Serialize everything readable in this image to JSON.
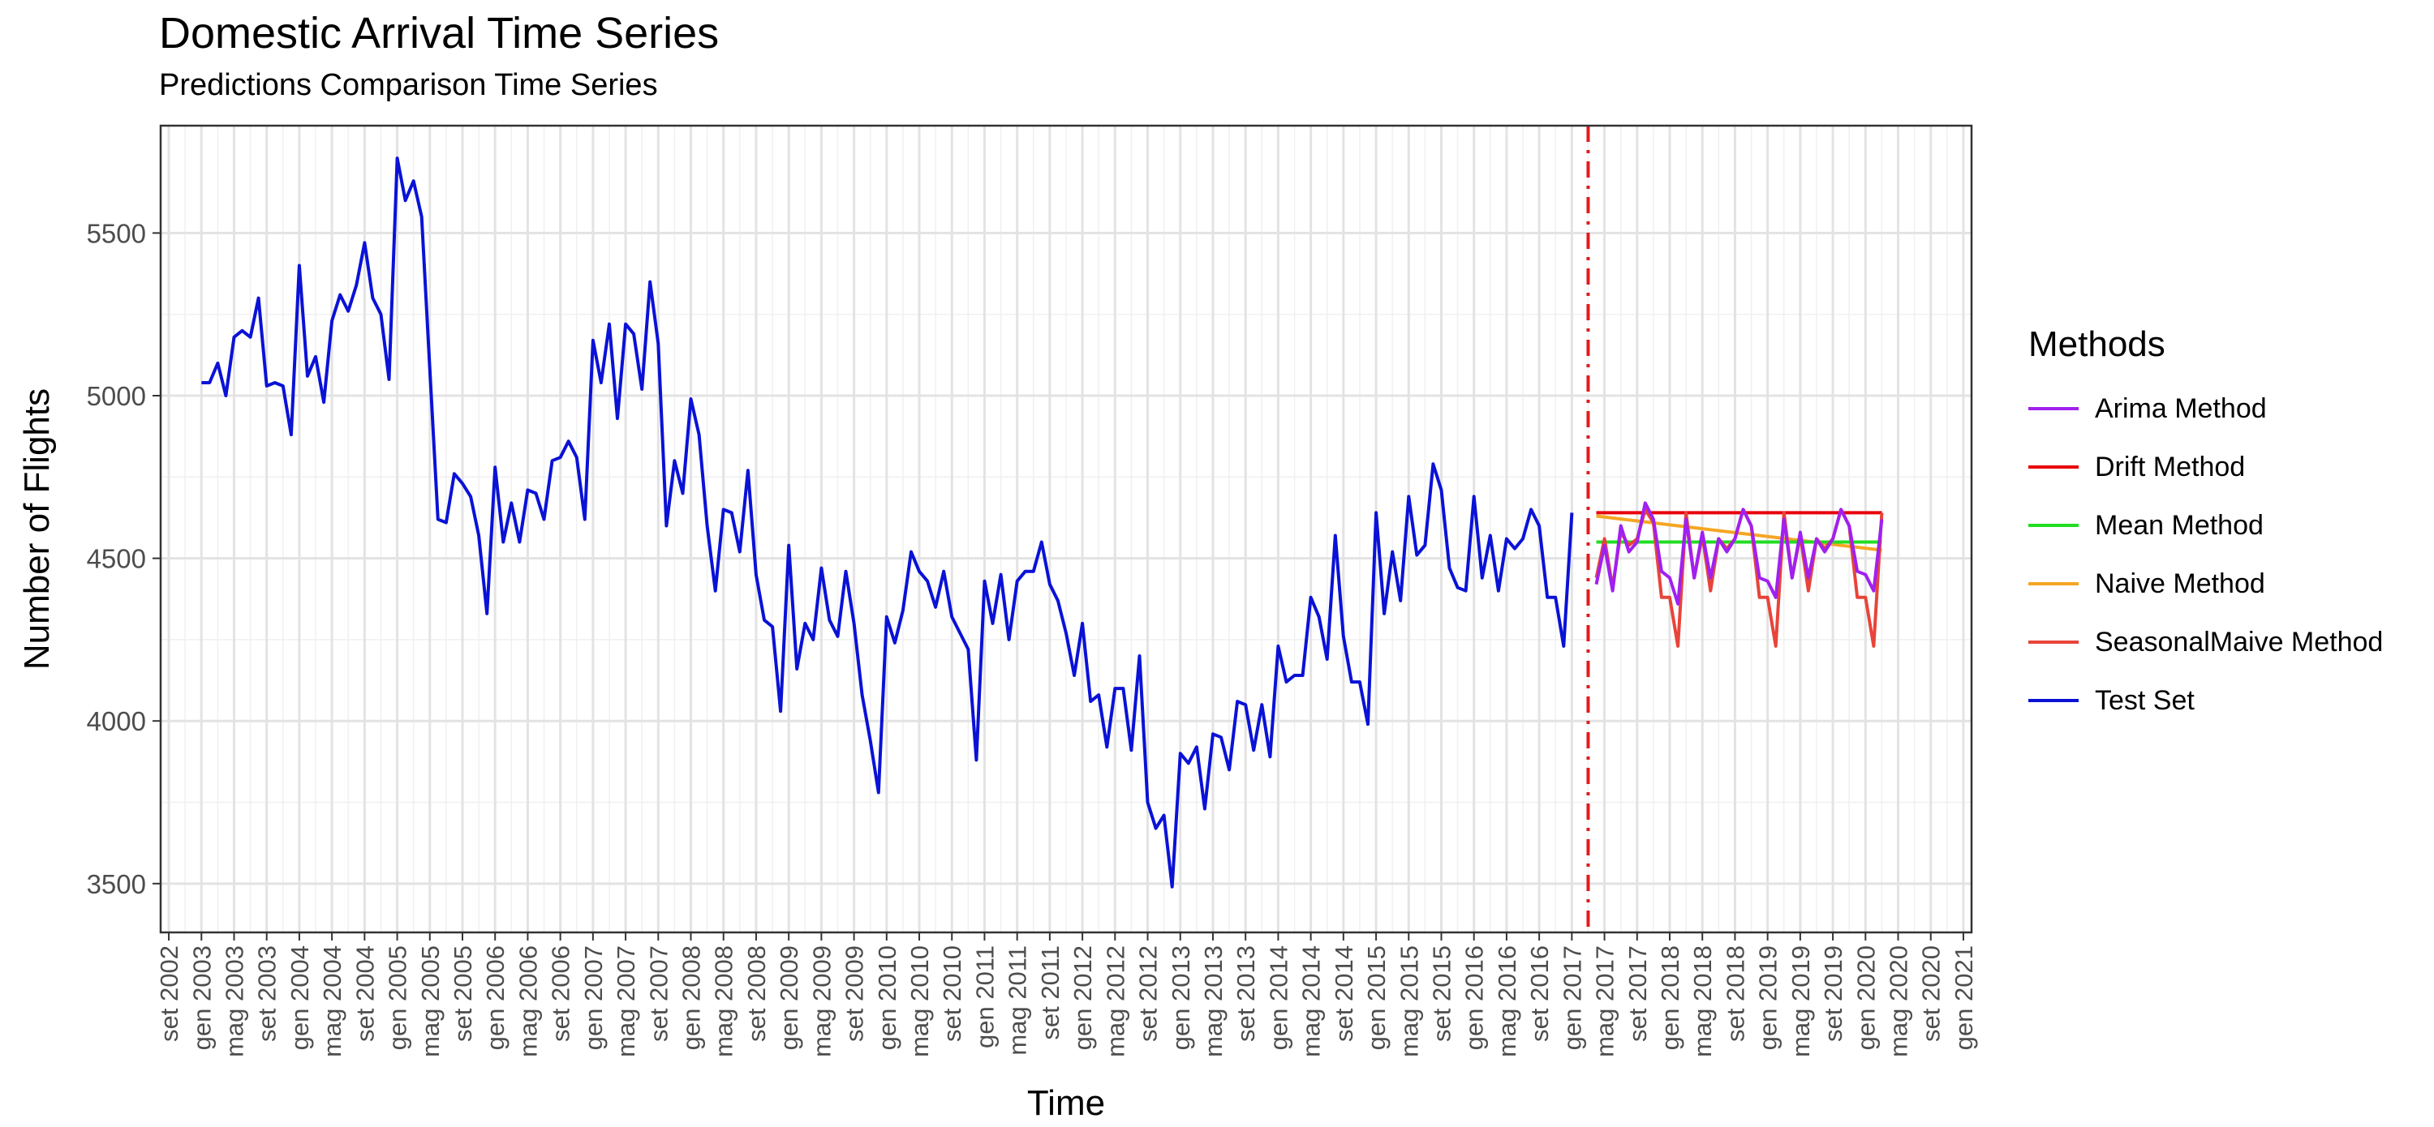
{
  "chart_data": {
    "type": "line",
    "title": "Domestic Arrival Time Series",
    "subtitle": "Predictions Comparison Time Series",
    "xlabel": "Time",
    "ylabel": "Number of Flights",
    "x_range": [
      "2002-08",
      "2021-02"
    ],
    "ylim": [
      3350,
      5830
    ],
    "y_ticks": [
      3500,
      4000,
      4500,
      5000,
      5500
    ],
    "x_tick_labels": [
      "set 2002",
      "gen 2003",
      "mag 2003",
      "set 2003",
      "gen 2004",
      "mag 2004",
      "set 2004",
      "gen 2005",
      "mag 2005",
      "set 2005",
      "gen 2006",
      "mag 2006",
      "set 2006",
      "gen 2007",
      "mag 2007",
      "set 2007",
      "gen 2008",
      "mag 2008",
      "set 2008",
      "gen 2009",
      "mag 2009",
      "set 2009",
      "gen 2010",
      "mag 2010",
      "set 2010",
      "gen 2011",
      "mag 2011",
      "set 2011",
      "gen 2012",
      "mag 2012",
      "set 2012",
      "gen 2013",
      "mag 2013",
      "set 2013",
      "gen 2014",
      "mag 2014",
      "set 2014",
      "gen 2015",
      "mag 2015",
      "set 2015",
      "gen 2016",
      "mag 2016",
      "set 2016",
      "gen 2017",
      "mag 2017",
      "set 2017",
      "gen 2018",
      "mag 2018",
      "set 2018",
      "gen 2019",
      "mag 2019",
      "set 2019",
      "gen 2020",
      "mag 2020",
      "set 2020",
      "gen 2021"
    ],
    "vline": {
      "x": "2017-03",
      "color": "#e31a1c",
      "style": "dotdash"
    },
    "grid": true,
    "legend": {
      "title": "Methods",
      "position": "right"
    },
    "series": [
      {
        "name": "Test Set",
        "color": "#0a12d6",
        "start": "2003-01",
        "values": [
          5040,
          5040,
          5100,
          5000,
          5180,
          5200,
          5180,
          5300,
          5030,
          5040,
          5030,
          4880,
          5400,
          5060,
          5120,
          4980,
          5230,
          5310,
          5260,
          5340,
          5470,
          5300,
          5250,
          5050,
          5730,
          5600,
          5660,
          5550,
          5080,
          4620,
          4610,
          4760,
          4730,
          4690,
          4570,
          4330,
          4780,
          4550,
          4670,
          4550,
          4710,
          4700,
          4620,
          4800,
          4810,
          4860,
          4810,
          4620,
          5170,
          5040,
          5220,
          4930,
          5220,
          5190,
          5020,
          5350,
          5160,
          4600,
          4800,
          4700,
          4990,
          4880,
          4600,
          4400,
          4650,
          4640,
          4520,
          4770,
          4450,
          4310,
          4290,
          4030,
          4540,
          4160,
          4300,
          4250,
          4470,
          4310,
          4260,
          4460,
          4300,
          4080,
          3940,
          3780,
          4320,
          4240,
          4340,
          4520,
          4460,
          4430,
          4350,
          4460,
          4320,
          4270,
          4220,
          3880,
          4430,
          4300,
          4450,
          4250,
          4430,
          4460,
          4460,
          4550,
          4420,
          4370,
          4270,
          4140,
          4300,
          4060,
          4080,
          3920,
          4100,
          4100,
          3910,
          4200,
          3750,
          3670,
          3710,
          3490,
          3900,
          3870,
          3920,
          3730,
          3960,
          3950,
          3850,
          4060,
          4050,
          3910,
          4050,
          3890,
          4230,
          4120,
          4140,
          4140,
          4380,
          4320,
          4190,
          4570,
          4260,
          4120,
          4120,
          3990,
          4640,
          4330,
          4520,
          4370,
          4690,
          4510,
          4540,
          4790,
          4710,
          4470,
          4410,
          4400,
          4690,
          4440,
          4570,
          4400,
          4560,
          4530,
          4560,
          4650,
          4600,
          4380,
          4380,
          4230,
          4640
        ]
      },
      {
        "name": "Arima Method",
        "color": "#a020f0",
        "start": "2017-04",
        "values": [
          4420,
          4540,
          4400,
          4600,
          4520,
          4550,
          4670,
          4620,
          4460,
          4440,
          4360,
          4620,
          4440,
          4580,
          4440,
          4560,
          4520,
          4560,
          4650,
          4600,
          4440,
          4430,
          4380,
          4620,
          4440,
          4580,
          4440,
          4560,
          4520,
          4560,
          4650,
          4600,
          4460,
          4450,
          4400,
          4620
        ]
      },
      {
        "name": "Drift Method",
        "color": "#e8000b",
        "start": "2017-04",
        "values": [
          4640,
          4640,
          4640,
          4640,
          4640,
          4640,
          4640,
          4640,
          4640,
          4640,
          4640,
          4640,
          4640,
          4640,
          4640,
          4640,
          4640,
          4640,
          4640,
          4640,
          4640,
          4640,
          4640,
          4640,
          4640,
          4640,
          4640,
          4640,
          4640,
          4640,
          4640,
          4640,
          4640,
          4640,
          4640,
          4640
        ]
      },
      {
        "name": "Mean Method",
        "color": "#22dd22",
        "start": "2017-04",
        "values": [
          4550,
          4550,
          4550,
          4550,
          4550,
          4550,
          4550,
          4550,
          4550,
          4550,
          4550,
          4550,
          4550,
          4550,
          4550,
          4550,
          4550,
          4550,
          4550,
          4550,
          4550,
          4550,
          4550,
          4550,
          4550,
          4550,
          4550,
          4550,
          4550,
          4550,
          4550,
          4550,
          4550,
          4550,
          4550,
          4550
        ]
      },
      {
        "name": "Naive Method",
        "color": "#f5a623",
        "start": "2017-04",
        "values": [
          4630,
          4627,
          4624,
          4621,
          4618,
          4615,
          4612,
          4609,
          4606,
          4603,
          4600,
          4597,
          4594,
          4591,
          4588,
          4585,
          4582,
          4579,
          4576,
          4573,
          4570,
          4567,
          4564,
          4561,
          4558,
          4555,
          4552,
          4549,
          4546,
          4543,
          4540,
          4537,
          4534,
          4531,
          4528,
          4525
        ]
      },
      {
        "name": "SeasonalMaive Method",
        "color": "#e8443a",
        "start": "2017-04",
        "values": [
          4440,
          4560,
          4410,
          4580,
          4540,
          4560,
          4650,
          4610,
          4380,
          4380,
          4230,
          4640,
          4440,
          4570,
          4400,
          4560,
          4530,
          4560,
          4650,
          4600,
          4380,
          4380,
          4230,
          4640,
          4440,
          4570,
          4400,
          4560,
          4530,
          4560,
          4650,
          4600,
          4380,
          4380,
          4230,
          4640
        ]
      }
    ],
    "legend_order": [
      "Arima Method",
      "Drift Method",
      "Mean Method",
      "Naive Method",
      "SeasonalMaive Method",
      "Test Set"
    ]
  }
}
